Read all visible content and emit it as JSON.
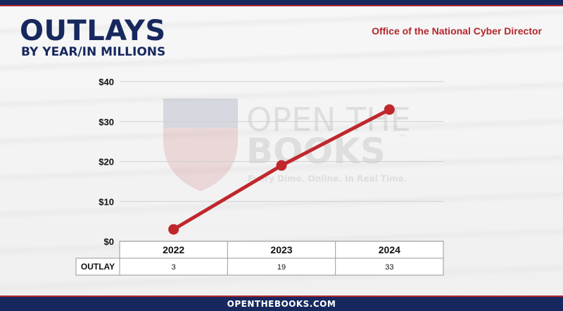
{
  "header": {
    "title": "OUTLAYS",
    "subtitle": "BY YEAR/IN MILLIONS",
    "agency": "Office of the National Cyber Director"
  },
  "watermark": {
    "line1": "OPEN THE",
    "line2": "BOOKS",
    "tm": "™",
    "tagline": "Every Dime. Online. In Real Time."
  },
  "footer": {
    "site": "OPENTHEBOOKS.COM"
  },
  "colors": {
    "navy": "#17285e",
    "red": "#b3262b",
    "line": "#c0272d"
  },
  "chart_data": {
    "type": "line",
    "title": "OUTLAYS",
    "subtitle": "BY YEAR/IN MILLIONS",
    "categories": [
      "2022",
      "2023",
      "2024"
    ],
    "series": [
      {
        "name": "OUTLAY",
        "values": [
          3,
          19,
          33
        ]
      }
    ],
    "ylim": [
      0,
      40
    ],
    "yticks": [
      "$0",
      "$10",
      "$20",
      "$30",
      "$40"
    ],
    "ytick_values": [
      0,
      10,
      20,
      30,
      40
    ],
    "table_row_label": "OUTLAY",
    "table_values": [
      "3",
      "19",
      "33"
    ],
    "grid": true
  }
}
